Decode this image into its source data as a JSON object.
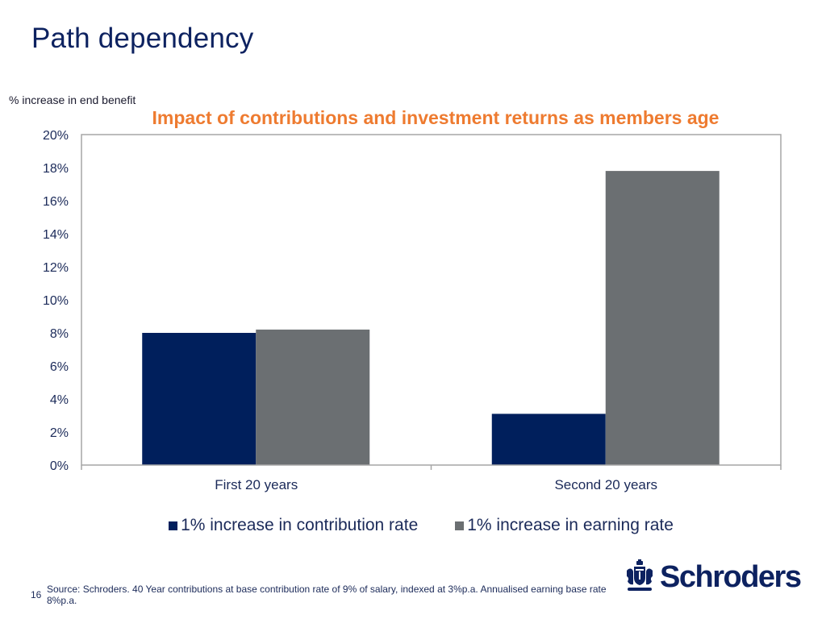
{
  "slide": {
    "title": "Path dependency",
    "page_number": "16",
    "source_note": "Source: Schroders. 40 Year contributions at base contribution rate of 9% of salary, indexed at 3%p.a.  Annualised earning base rate 8%p.a.",
    "logo_text": "Schroders",
    "logo_icon": "coat-of-arms-icon"
  },
  "colors": {
    "title": "#0d2260",
    "chart_title": "#ee7b30",
    "series_contribution": "#001f5c",
    "series_earning": "#6b6f72",
    "axis": "#a6a6a6"
  },
  "chart_data": {
    "type": "bar",
    "title": "Impact of contributions and investment returns as members age",
    "ylabel": "% increase in end benefit",
    "xlabel": "",
    "categories": [
      "First 20 years",
      "Second 20 years"
    ],
    "series": [
      {
        "name": "1% increase in contribution rate",
        "values": [
          8.0,
          3.1
        ]
      },
      {
        "name": "1% increase in earning rate",
        "values": [
          8.2,
          17.8
        ]
      }
    ],
    "ylim": [
      0,
      20
    ],
    "yticks": [
      0,
      2,
      4,
      6,
      8,
      10,
      12,
      14,
      16,
      18,
      20
    ],
    "ytick_format": "percent",
    "grid": false,
    "legend_position": "bottom"
  }
}
